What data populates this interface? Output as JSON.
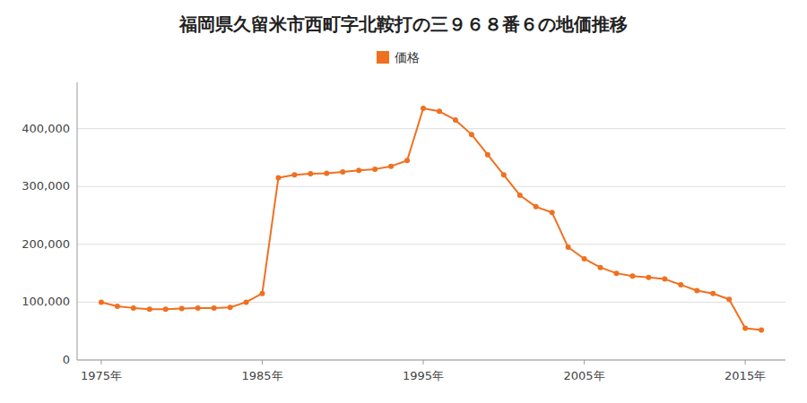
{
  "chart_data": {
    "type": "line",
    "title": "福岡県久留米市西町字北鞍打の三９６８番６の地価推移",
    "x": [
      1975,
      1976,
      1977,
      1978,
      1979,
      1980,
      1981,
      1982,
      1983,
      1984,
      1985,
      1986,
      1987,
      1988,
      1989,
      1990,
      1991,
      1992,
      1993,
      1994,
      1995,
      1996,
      1997,
      1998,
      1999,
      2000,
      2001,
      2002,
      2003,
      2004,
      2005,
      2006,
      2007,
      2008,
      2009,
      2010,
      2011,
      2012,
      2013,
      2014,
      2015,
      2016
    ],
    "series": [
      {
        "name": "価格",
        "color": "#f07020",
        "marker": "circle",
        "line_style": "solid",
        "values": [
          100000,
          93000,
          90000,
          88000,
          88000,
          89000,
          90000,
          90000,
          91000,
          100000,
          115000,
          315000,
          320000,
          322000,
          323000,
          325000,
          328000,
          330000,
          335000,
          345000,
          435000,
          430000,
          415000,
          390000,
          355000,
          320000,
          285000,
          265000,
          255000,
          195000,
          175000,
          160000,
          150000,
          145000,
          143000,
          140000,
          130000,
          120000,
          115000,
          105000,
          55000,
          52000
        ]
      }
    ],
    "xlim": [
      1973.5,
      2017.5
    ],
    "xticks": [
      {
        "value": 1975,
        "label": "1975年"
      },
      {
        "value": 1985,
        "label": "1985年"
      },
      {
        "value": 1995,
        "label": "1995年"
      },
      {
        "value": 2005,
        "label": "2005年"
      },
      {
        "value": 2015,
        "label": "2015年"
      }
    ],
    "ylim": [
      0,
      480000
    ],
    "yticks": [
      0,
      {
        "value": 100000,
        "label": "100,000"
      },
      {
        "value": 200000,
        "label": "200,000"
      },
      {
        "value": 300000,
        "label": "300,000"
      },
      {
        "value": 400000,
        "label": "400,000"
      }
    ],
    "grid": true,
    "legend": "top"
  }
}
